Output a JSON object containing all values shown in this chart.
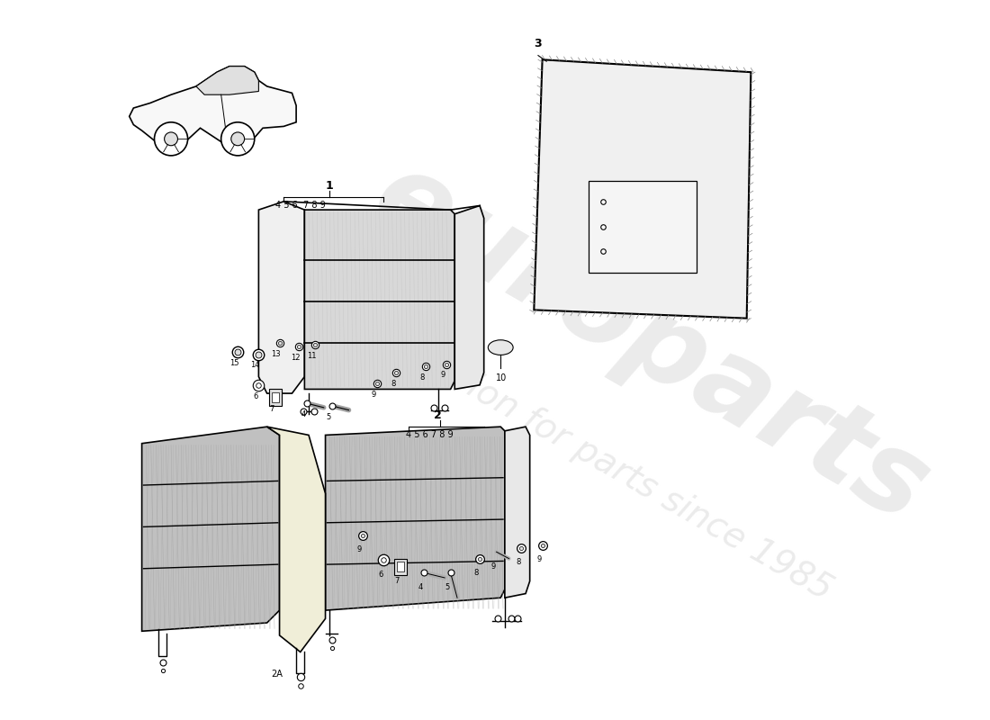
{
  "bg_color": "#ffffff",
  "line_color": "#000000",
  "seat_fill": "#b8b8b8",
  "seat_side_fill": "#e8e8e8",
  "seat_stripe_color": "#888888",
  "center_divider_fill": "#e8e0c0",
  "watermark1": "europarts",
  "watermark2": "a passion for parts since 1985",
  "wm_color": "#d8d8d8",
  "part1_label": "1",
  "part1_sub": "4 5 6  7 8 9",
  "part2_label": "2",
  "part2_sub": "4 5 6 7 8 9",
  "part2A_label": "2A",
  "part3_label": "3",
  "part10_label": "10",
  "font_small": 7,
  "font_label": 8,
  "font_part": 9
}
